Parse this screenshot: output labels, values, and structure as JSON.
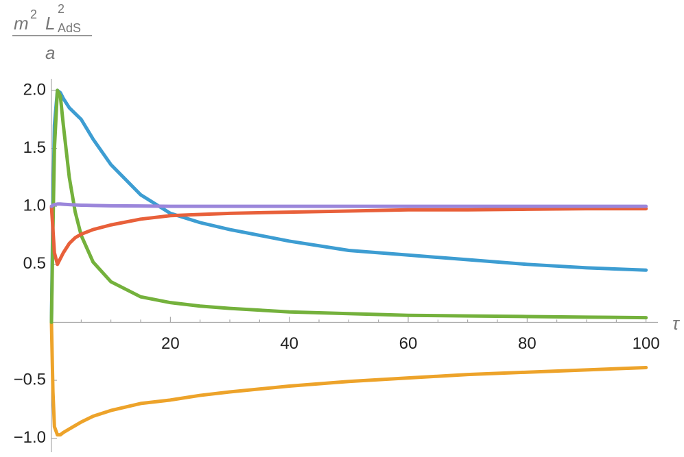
{
  "chart_data": {
    "type": "line",
    "ylabel": {
      "numerator": [
        "m",
        "2",
        "L",
        "2",
        "AdS"
      ],
      "denominator": "a"
    },
    "xlabel": "τ",
    "x": [
      0,
      0.25,
      0.5,
      1,
      1.5,
      2,
      3,
      4,
      5,
      7,
      10,
      15,
      20,
      25,
      30,
      40,
      50,
      60,
      70,
      80,
      90,
      100
    ],
    "series": [
      {
        "color": "#3d9dd2",
        "values": [
          0,
          1.0,
          1.7,
          2.0,
          1.98,
          1.93,
          1.85,
          1.8,
          1.75,
          1.58,
          1.36,
          1.1,
          0.94,
          0.86,
          0.8,
          0.7,
          0.62,
          0.58,
          0.54,
          0.5,
          0.47,
          0.45
        ]
      },
      {
        "color": "#eda32a",
        "values": [
          0,
          -0.6,
          -0.9,
          -0.97,
          -0.97,
          -0.95,
          -0.92,
          -0.89,
          -0.86,
          -0.81,
          -0.76,
          -0.7,
          -0.67,
          -0.63,
          -0.6,
          -0.55,
          -0.51,
          -0.48,
          -0.45,
          -0.43,
          -0.41,
          -0.39
        ]
      },
      {
        "color": "#74b13c",
        "values": [
          0,
          0.8,
          1.5,
          2.0,
          1.95,
          1.7,
          1.25,
          0.95,
          0.75,
          0.52,
          0.35,
          0.22,
          0.17,
          0.14,
          0.12,
          0.09,
          0.075,
          0.06,
          0.055,
          0.05,
          0.045,
          0.04
        ]
      },
      {
        "color": "#e8603a",
        "values": [
          1.0,
          0.8,
          0.6,
          0.5,
          0.55,
          0.6,
          0.68,
          0.73,
          0.76,
          0.8,
          0.84,
          0.89,
          0.92,
          0.93,
          0.94,
          0.95,
          0.96,
          0.97,
          0.97,
          0.975,
          0.98,
          0.98
        ]
      },
      {
        "color": "#9b86db",
        "values": [
          1.0,
          1.01,
          1.015,
          1.02,
          1.02,
          1.018,
          1.015,
          1.012,
          1.01,
          1.008,
          1.005,
          1.003,
          1.0,
          1.0,
          1.0,
          1.0,
          1.0,
          1.0,
          1.0,
          1.0,
          1.0,
          1.0
        ]
      }
    ],
    "xlim": [
      0,
      102
    ],
    "ylim": [
      -1.12,
      2.1
    ],
    "xticks": [
      20,
      40,
      60,
      80,
      100
    ],
    "xminorticks": [
      5,
      10,
      15,
      25,
      30,
      35,
      45,
      50,
      55,
      65,
      70,
      75,
      85,
      90,
      95
    ],
    "yticks": [
      {
        "value": -1,
        "label": "−1.0"
      },
      {
        "value": -0.5,
        "label": "−0.5"
      },
      {
        "value": 0.5,
        "label": "0.5"
      },
      {
        "value": 1,
        "label": "1.0"
      },
      {
        "value": 1.5,
        "label": "1.5"
      },
      {
        "value": 2,
        "label": "2.0"
      }
    ]
  }
}
